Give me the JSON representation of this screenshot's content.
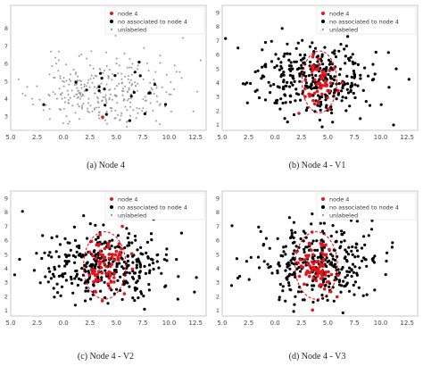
{
  "captions": [
    "(a) Node 4",
    "(b) Node 4 - V1",
    "(c) Node 4 - V2",
    "(d) Node 4 - V3"
  ],
  "colors": {
    "node": "#e8141d",
    "assoc": "#000000",
    "unlabeled": "#9a9a9a",
    "axes": "#bbbbbb"
  },
  "chart_data": [
    {
      "type": "scatter",
      "panel": "a",
      "legend": [
        "node 4",
        "no associated to node 4",
        "unlabeled"
      ],
      "legend_position": "top-right",
      "xticks": [
        "5.0",
        "2.5",
        "0.0",
        "2.5",
        "5.0",
        "7.5",
        "10.0",
        "12.5"
      ],
      "yticks": [
        "8",
        "7",
        "6",
        "5",
        "4",
        "3"
      ],
      "xlim": [
        -5,
        13.5
      ],
      "ylim": [
        2.2,
        9.3
      ],
      "series": [
        {
          "name": "unlabeled",
          "seed": 11,
          "n": 320,
          "cx": 3.7,
          "cy": 4.3,
          "sx": 3.2,
          "sy": 1.05
        },
        {
          "name": "no associated to node 4",
          "seed": 5,
          "n": 22,
          "cx": 3.7,
          "cy": 4.6,
          "sx": 3.0,
          "sy": 1.2
        },
        {
          "name": "node 4",
          "points": [
            [
              3.7,
              2.95
            ]
          ]
        }
      ]
    },
    {
      "type": "scatter",
      "panel": "b",
      "legend": [
        "node 4",
        "no associated to node 4",
        "unlabeled"
      ],
      "legend_position": "top-right",
      "xticks": [
        "5.0",
        "2.5",
        "0.0",
        "2.5",
        "5.0",
        "7.5",
        "10.0",
        "12.5"
      ],
      "yticks": [
        "9",
        "8",
        "7",
        "6",
        "5",
        "4",
        "3",
        "2",
        "1"
      ],
      "xlim": [
        -5,
        13.5
      ],
      "ylim": [
        0.6,
        9.5
      ],
      "ellipse": {
        "cx": 4.2,
        "cy": 4.05,
        "rx": 1.65,
        "ry": 2.2
      },
      "series": [
        {
          "name": "no associated to node 4",
          "seed": 21,
          "n": 330,
          "cx": 3.8,
          "cy": 4.3,
          "sx": 3.0,
          "sy": 1.35
        },
        {
          "name": "node 4",
          "seed": 31,
          "n": 55,
          "cx": 4.2,
          "cy": 4.05,
          "sx": 0.75,
          "sy": 0.95
        }
      ]
    },
    {
      "type": "scatter",
      "panel": "c",
      "legend": [
        "node 4",
        "no associated to node 4",
        "unlabeled"
      ],
      "legend_position": "top-right",
      "xticks": [
        "5.0",
        "2.5",
        "0.0",
        "2.5",
        "5.0",
        "7.5",
        "10.0",
        "12.5"
      ],
      "yticks": [
        "9",
        "8",
        "7",
        "6",
        "5",
        "4",
        "3",
        "2",
        "1"
      ],
      "xlim": [
        -5,
        13.5
      ],
      "ylim": [
        0.6,
        9.5
      ],
      "ellipse": {
        "cx": 3.9,
        "cy": 4.2,
        "rx": 2.0,
        "ry": 2.4
      },
      "series": [
        {
          "name": "no associated to node 4",
          "seed": 41,
          "n": 330,
          "cx": 3.8,
          "cy": 4.3,
          "sx": 3.0,
          "sy": 1.35
        },
        {
          "name": "node 4",
          "seed": 51,
          "n": 75,
          "cx": 3.9,
          "cy": 4.2,
          "sx": 0.9,
          "sy": 1.05
        }
      ]
    },
    {
      "type": "scatter",
      "panel": "d",
      "legend": [
        "node 4",
        "no associated to node 4",
        "unlabeled"
      ],
      "legend_position": "top-right",
      "xticks": [
        "5.0",
        "2.5",
        "0.0",
        "2.5",
        "5.0",
        "7.5",
        "10.0",
        "12.5"
      ],
      "yticks": [
        "9",
        "8",
        "7",
        "6",
        "5",
        "4",
        "3",
        "2",
        "1"
      ],
      "xlim": [
        -5,
        13.5
      ],
      "ylim": [
        0.6,
        9.5
      ],
      "ellipse": {
        "cx": 3.9,
        "cy": 4.2,
        "rx": 2.0,
        "ry": 2.4
      },
      "series": [
        {
          "name": "no associated to node 4",
          "seed": 61,
          "n": 330,
          "cx": 3.8,
          "cy": 4.3,
          "sx": 3.0,
          "sy": 1.35
        },
        {
          "name": "node 4",
          "seed": 71,
          "n": 75,
          "cx": 3.9,
          "cy": 4.2,
          "sx": 0.9,
          "sy": 1.05
        }
      ]
    }
  ]
}
